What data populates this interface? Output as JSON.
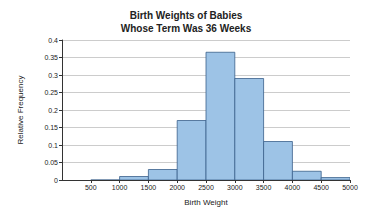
{
  "chart_data": {
    "type": "histogram",
    "title": "Birth Weights of Babies\nWhose Term Was 36 Weeks",
    "x_label": "Birth Weight",
    "y_label": "Relative Frequency",
    "bins": [
      500,
      1000,
      1500,
      2000,
      2500,
      3000,
      3500,
      4000,
      4500,
      5000
    ],
    "values": [
      0,
      0.01,
      0.03,
      0.17,
      0.365,
      0.29,
      0.11,
      0.025,
      0.007
    ],
    "color": "#9dc3e6",
    "xlim": [
      0,
      5000
    ],
    "xticks": [
      500,
      1000,
      1500,
      2000,
      2500,
      3000,
      3500,
      4000,
      4500,
      5000
    ],
    "ylim": [
      0,
      0.4
    ],
    "yticks": [
      0,
      0.05,
      0.1,
      0.15,
      0.2,
      0.25,
      0.3,
      0.35,
      0.4
    ],
    "grid": true
  }
}
